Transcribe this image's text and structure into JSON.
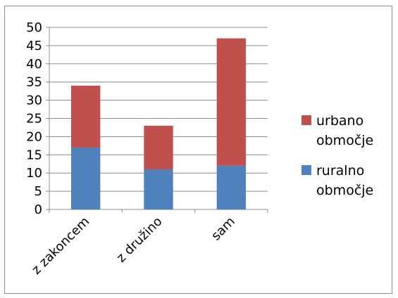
{
  "chart_data": {
    "type": "bar",
    "stacked": true,
    "categories": [
      "z zakoncem",
      "z družino",
      "sam"
    ],
    "series": [
      {
        "name": "ruralno območje",
        "values": [
          17,
          11,
          12
        ],
        "color": "#4F81BD"
      },
      {
        "name": "urbano območje",
        "values": [
          17,
          12,
          35
        ],
        "color": "#C0504D"
      }
    ],
    "ylim": [
      0,
      50
    ],
    "yticks": [
      0,
      5,
      10,
      15,
      20,
      25,
      30,
      35,
      40,
      45,
      50
    ],
    "grid": true,
    "legend_position": "right",
    "title": "",
    "xlabel": "",
    "ylabel": ""
  },
  "legend": {
    "items": [
      {
        "line1": "urbano",
        "line2": "območje",
        "color": "#C0504D"
      },
      {
        "line1": "ruralno",
        "line2": "območje",
        "color": "#4F81BD"
      }
    ]
  }
}
